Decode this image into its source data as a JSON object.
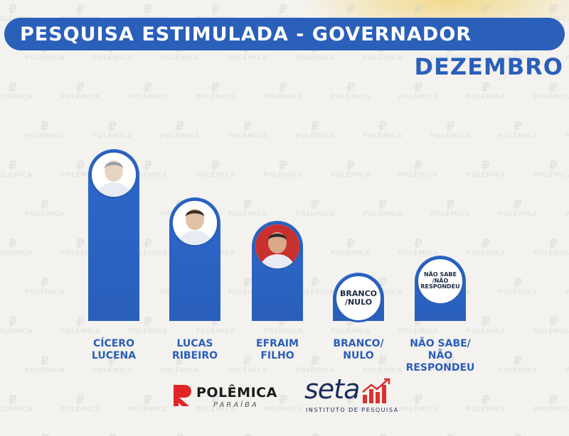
{
  "header": {
    "title": "PESQUISA ESTIMULADA - GOVERNADOR",
    "subtitle": "DEZEMBRO"
  },
  "colors": {
    "primary": "#2a5fba",
    "label": "#2a5fba"
  },
  "chart_data": {
    "type": "bar",
    "categories": [
      "CÍCERO\nLUCENA",
      "LUCAS\nRIBEIRO",
      "EFRAIM\nFILHO",
      "BRANCO/\nNULO",
      "NÃO SABE/\nNÃO RESPONDEU"
    ],
    "values": [
      250,
      180,
      145,
      70,
      95
    ],
    "value_labels_visible": false,
    "markers": [
      {
        "kind": "photo",
        "label": "",
        "icon": "person-photo"
      },
      {
        "kind": "photo",
        "label": "",
        "icon": "person-photo"
      },
      {
        "kind": "photo",
        "label": "",
        "icon": "person-photo"
      },
      {
        "kind": "text",
        "label": "BRANCO\n/NULO"
      },
      {
        "kind": "text",
        "label": "NÃO SABE\n/NÃO\nRESPONDEU"
      }
    ],
    "title": "PESQUISA ESTIMULADA - GOVERNADOR",
    "subtitle": "DEZEMBRO",
    "xlabel": "",
    "ylabel": "",
    "ylim": [
      0,
      260
    ],
    "grid": false,
    "legend": "none"
  },
  "watermark": {
    "glyph": "₽",
    "text": "POLÊMICA"
  },
  "footer": {
    "polemica_name": "POLÊMICA",
    "polemica_sub": "PARAÍBA",
    "seta_name": "seta",
    "seta_sub": "INSTITUTO DE PESQUISA"
  }
}
